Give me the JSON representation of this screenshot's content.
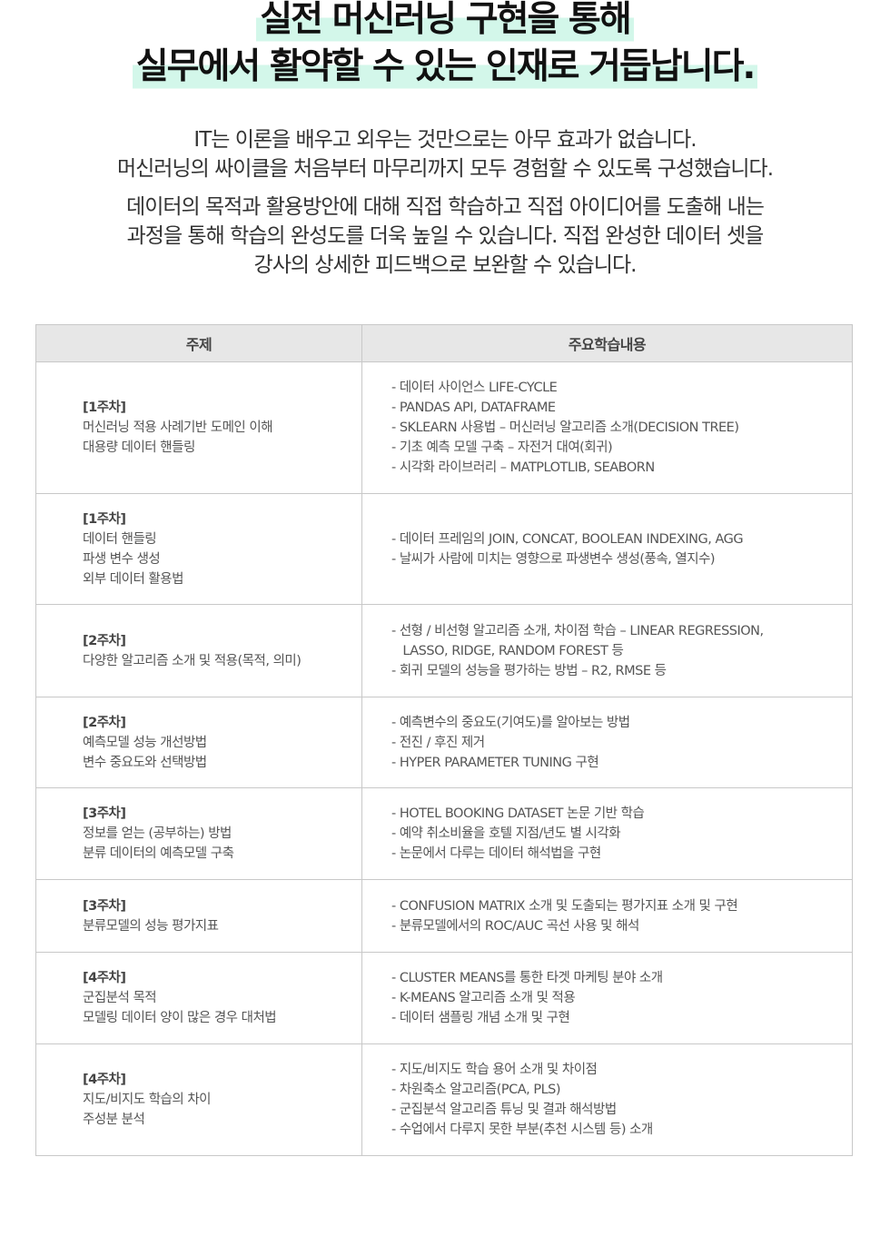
{
  "headline": [
    "실전 머신러닝 구현을 통해",
    "실무에서 활약할 수 있는 인재로 거듭납니다."
  ],
  "intro1": [
    "IT는 이론을 배우고 외우는 것만으로는 아무 효과가 없습니다.",
    "머신러닝의 싸이클을 처음부터 마무리까지 모두 경험할 수 있도록 구성했습니다."
  ],
  "intro2": [
    "데이터의 목적과 활용방안에 대해 직접 학습하고 직접 아이디어를 도출해 내는",
    "과정을 통해 학습의 완성도를 더욱 높일 수 있습니다. 직접 완성한 데이터 셋을",
    "강사의 상세한 피드백으로 보완할 수 있습니다."
  ],
  "highlight_color": "#d3f7ea",
  "table": {
    "headers": [
      "주제",
      "주요학습내용"
    ],
    "rows": [
      {
        "week": "[1주차]",
        "topics": [
          "머신러닝 적용 사례기반 도메인 이해",
          "대용량 데이터 핸들링"
        ],
        "contents": [
          "- 데이터 사이언스 LIFE-CYCLE",
          "- PANDAS API, DATAFRAME",
          "- SKLEARN 사용법 – 머신러닝 알고리즘 소개(DECISION TREE)",
          "- 기초 예측 모델 구축 – 자전거 대여(회귀)",
          "- 시각화 라이브러리 – MATPLOTLIB, SEABORN"
        ],
        "h": 145
      },
      {
        "week": "[1주차]",
        "topics": [
          "데이터 핸들링",
          "파생 변수 생성",
          "외부 데이터 활용법"
        ],
        "contents": [
          "- 데이터 프레임의 JOIN, CONCAT, BOOLEAN INDEXING, AGG",
          "- 날씨가 사람에 미치는 영향으로 파생변수 생성(풍속, 열지수)"
        ],
        "h": 122
      },
      {
        "week": "[2주차]",
        "topics": [
          "다양한 알고리즘 소개 및 적용(목적, 의미)"
        ],
        "contents": [
          "- 선형 / 비선형 알고리즘 소개, 차이점 학습 – LINEAR REGRESSION,",
          "   LASSO, RIDGE, RANDOM FOREST 등",
          "- 회귀 모델의 성능을 평가하는 방법 – R2, RMSE 등"
        ],
        "h": 102
      },
      {
        "week": "[2주차]",
        "topics": [
          "예측모델 성능 개선방법",
          "변수 중요도와 선택방법"
        ],
        "contents": [
          "- 예측변수의 중요도(기여도)를 알아보는 방법",
          "- 전진 / 후진 제거",
          "- HYPER PARAMETER TUNING 구현"
        ],
        "h": 100
      },
      {
        "week": "[3주차]",
        "topics": [
          "정보를 얻는 (공부하는) 방법",
          "분류 데이터의 예측모델 구축"
        ],
        "contents": [
          "- HOTEL BOOKING DATASET 논문 기반 학습",
          "- 예약 취소비율을 호텔 지점/년도 별 시각화",
          "- 논문에서 다루는 데이터 해석법을 구현"
        ],
        "h": 101
      },
      {
        "week": "[3주차]",
        "topics": [
          "분류모델의 성능 평가지표"
        ],
        "contents": [
          "- CONFUSION MATRIX 소개 및 도출되는 평가지표 소개 및 구현",
          "- 분류모델에서의 ROC/AUC 곡선 사용 및 해석"
        ],
        "h": 80
      },
      {
        "week": "[4주차]",
        "topics": [
          "군집분석 목적",
          "모델링 데이터 양이 많은 경우 대처법"
        ],
        "contents": [
          "- CLUSTER MEANS를 통한 타겟 마케팅 분야 소개",
          "- K-MEANS 알고리즘 소개 및 적용",
          "- 데이터 샘플링 개념 소개 및 구현"
        ],
        "h": 101
      },
      {
        "week": "[4주차]",
        "topics": [
          "지도/비지도 학습의 차이",
          "주성분 분석"
        ],
        "contents": [
          "- 지도/비지도 학습 용어 소개 및 차이점",
          "- 차원축소 알고리즘(PCA, PLS)",
          "- 군집분석 알고리즘 튜닝 및 결과 해석방법",
          "- 수업에서 다루지 못한 부분(추천 시스템 등) 소개"
        ],
        "h": 123
      }
    ]
  }
}
